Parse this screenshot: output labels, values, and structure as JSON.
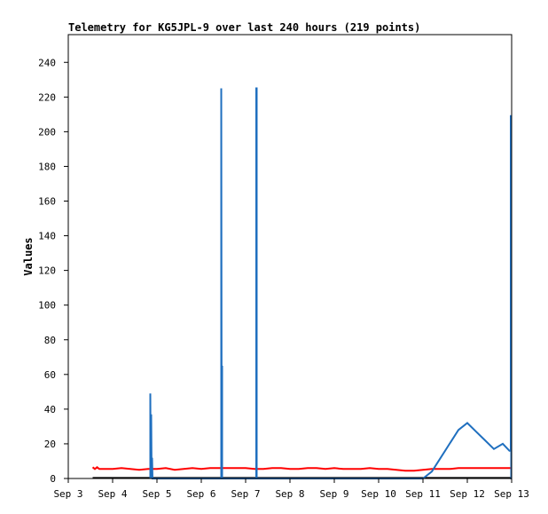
{
  "chart_data": {
    "type": "line",
    "title": "Telemetry for KG5JPL-9 over last 240 hours (219 points)",
    "xlabel": "",
    "ylabel": "Values",
    "x_ticks": [
      "Sep 3",
      "Sep 4",
      "Sep 5",
      "Sep 6",
      "Sep 7",
      "Sep 8",
      "Sep 9",
      "Sep 10",
      "Sep 11",
      "Sep 12",
      "Sep 13"
    ],
    "y_ticks": [
      0,
      20,
      40,
      60,
      80,
      100,
      120,
      140,
      160,
      180,
      200,
      220,
      240
    ],
    "xlim": [
      0,
      10
    ],
    "ylim": [
      0,
      256
    ],
    "grid": false,
    "legend": "none",
    "series": [
      {
        "color": "#ff0000",
        "x": [
          0.55,
          0.6,
          0.65,
          0.7,
          0.8,
          1.0,
          1.2,
          1.4,
          1.6,
          1.8,
          2.0,
          2.2,
          2.4,
          2.6,
          2.8,
          3.0,
          3.2,
          3.4,
          3.6,
          3.8,
          4.0,
          4.2,
          4.4,
          4.6,
          4.8,
          5.0,
          5.2,
          5.4,
          5.6,
          5.8,
          6.0,
          6.2,
          6.4,
          6.6,
          6.8,
          7.0,
          7.2,
          7.4,
          7.6,
          7.8,
          8.0,
          8.2,
          8.4,
          8.6,
          8.8,
          9.0,
          9.2,
          9.4,
          9.6,
          9.8,
          10.0
        ],
        "y": [
          6.5,
          5.5,
          6.5,
          5.5,
          5.5,
          5.5,
          6.0,
          5.5,
          5.0,
          5.5,
          5.5,
          6.0,
          5.0,
          5.5,
          6.0,
          5.5,
          6.0,
          6.0,
          6.0,
          6.0,
          6.0,
          5.5,
          5.5,
          6.0,
          6.0,
          5.5,
          5.5,
          6.0,
          6.0,
          5.5,
          6.0,
          5.5,
          5.5,
          5.5,
          6.0,
          5.5,
          5.5,
          5.0,
          4.5,
          4.5,
          5.0,
          5.5,
          5.5,
          5.5,
          6.0,
          6.0,
          6.0,
          6.0,
          6.0,
          6.0,
          6.0
        ]
      },
      {
        "color": "#000000",
        "x": [
          0.55,
          10.0
        ],
        "y": [
          0.3,
          0.3
        ]
      },
      {
        "color": "#1f6fbf",
        "x": [
          1.85,
          1.85,
          1.86,
          1.87,
          1.88,
          1.89,
          1.9,
          2.0,
          3.0,
          3.45,
          3.45,
          3.46,
          3.47,
          3.47,
          3.48,
          3.48,
          3.5,
          4.0,
          4.24,
          4.24,
          4.25,
          4.25,
          4.3,
          5.0,
          6.0,
          7.0,
          8.0,
          8.0,
          8.2,
          8.4,
          8.6,
          8.8,
          9.0,
          9.2,
          9.4,
          9.6,
          9.8,
          9.95,
          9.98,
          9.98,
          9.99,
          9.99,
          10.0
        ],
        "y": [
          0,
          49,
          0,
          37,
          0,
          12,
          0,
          0,
          0,
          0,
          225,
          0,
          65,
          0,
          0,
          0,
          0,
          0,
          0,
          225,
          225,
          0,
          0,
          0,
          0,
          0,
          0,
          0,
          4,
          12,
          20,
          28,
          32,
          27,
          22,
          17,
          20,
          16,
          16,
          209,
          209,
          0,
          0
        ]
      }
    ]
  }
}
